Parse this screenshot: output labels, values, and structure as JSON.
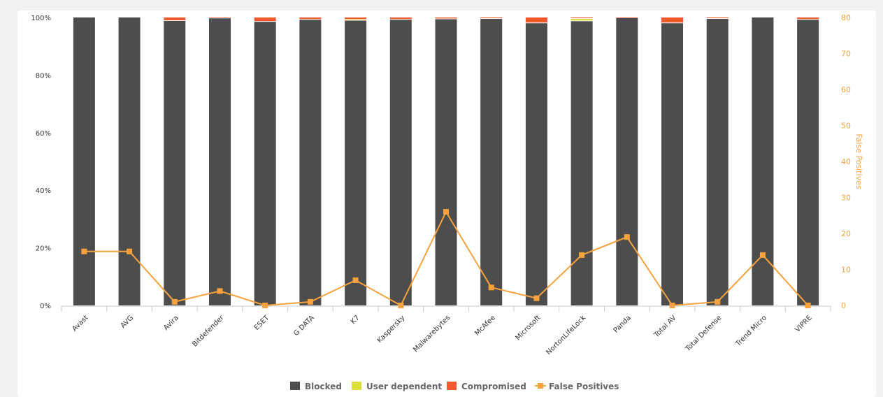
{
  "chart_data": {
    "type": "bar",
    "stacked": true,
    "categories": [
      "Avast",
      "AVG",
      "Avira",
      "Bitdefender",
      "ESET",
      "G DATA",
      "K7",
      "Kaspersky",
      "Malwarebytes",
      "McAfee",
      "Microsoft",
      "NortonLifeLock",
      "Panda",
      "Total AV",
      "Total Defense",
      "Trend Micro",
      "VIPRE"
    ],
    "series": [
      {
        "name": "Blocked",
        "color": "#4d4d4d",
        "values": [
          100,
          100,
          98.8,
          99.7,
          98.5,
          99.2,
          98.9,
          99.2,
          99.4,
          99.5,
          98,
          98.7,
          99.8,
          98,
          99.5,
          100,
          99.2
        ]
      },
      {
        "name": "User dependent",
        "color": "#d9df3c",
        "values": [
          0,
          0,
          0,
          0,
          0,
          0,
          0.3,
          0,
          0,
          0,
          0,
          0.8,
          0,
          0,
          0,
          0,
          0
        ]
      },
      {
        "name": "Compromised",
        "color": "#f15a2f",
        "values": [
          0,
          0,
          1.2,
          0.3,
          1.5,
          0.8,
          0.8,
          0.8,
          0.6,
          0.5,
          2,
          0.5,
          0.2,
          2,
          0.5,
          0,
          0.8
        ]
      },
      {
        "name": "False Positives",
        "type": "line",
        "axis": "right",
        "color": "#f7a23d",
        "values": [
          15,
          15,
          1,
          4,
          0,
          1,
          7,
          0,
          26,
          5,
          2,
          14,
          19,
          0,
          1,
          14,
          0
        ]
      }
    ],
    "y_left": {
      "ticks": [
        "0%",
        "20%",
        "40%",
        "60%",
        "80%",
        "100%"
      ],
      "ylim": [
        0,
        100
      ]
    },
    "y_right": {
      "label": "False Positives",
      "ticks": [
        "0",
        "10",
        "20",
        "30",
        "40",
        "50",
        "60",
        "70",
        "80"
      ],
      "ylim": [
        0,
        80
      ]
    },
    "legend": "bottom-center"
  }
}
